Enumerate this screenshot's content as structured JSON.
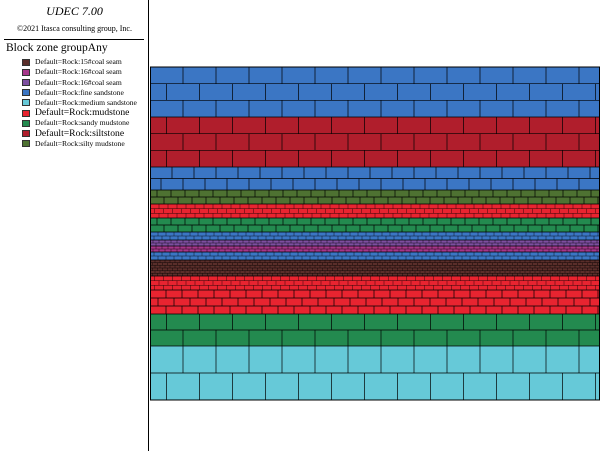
{
  "app": {
    "title": "UDEC 7.00",
    "copyright": "©2021 Itasca consulting group, Inc."
  },
  "legend": {
    "heading": "Block zone groupAny",
    "items": [
      {
        "label": "Default=Rock:15#coal seam",
        "color": "#5a2e2a",
        "large": false
      },
      {
        "label": "Default=Rock:16#coal seam",
        "color": "#a6368a",
        "large": false
      },
      {
        "label": "Default=Rock:16#coal seam",
        "color": "#7d4fa0",
        "large": false
      },
      {
        "label": "Default=Rock:fine sandstone",
        "color": "#3b76c4",
        "large": false
      },
      {
        "label": "Default=Rock:medium sandstone",
        "color": "#66c9d8",
        "large": false
      },
      {
        "label": "Default=Rock:mudstone",
        "color": "#e82430",
        "large": true
      },
      {
        "label": "Default=Rock:sandy mudstone",
        "color": "#238a4f",
        "large": false
      },
      {
        "label": "Default=Rock:siltstone",
        "color": "#b01e2c",
        "large": true
      },
      {
        "label": "Default=Rock:silty mudstone",
        "color": "#4e7232",
        "large": false
      }
    ]
  },
  "model": {
    "layer_order_top_to_bottom": [
      "fine sandstone",
      "siltstone",
      "fine sandstone",
      "silty mudstone",
      "mudstone",
      "sandy mudstone",
      "fine sandstone",
      "16#coal seam",
      "15#coal seam",
      "mudstone",
      "sandy mudstone",
      "medium sandstone"
    ]
  }
}
